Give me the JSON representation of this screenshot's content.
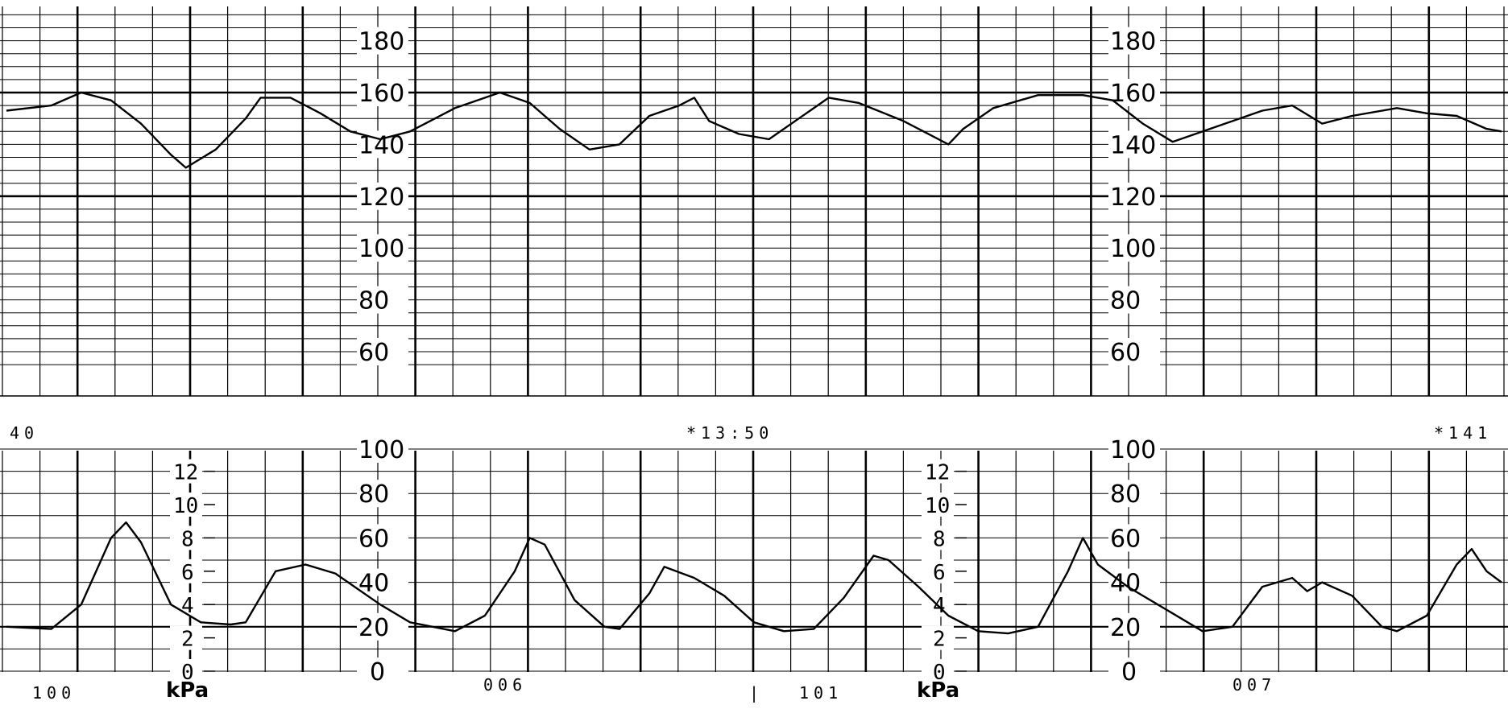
{
  "colors": {
    "paper": "#ffffff",
    "grid": "#000000",
    "trace": "#000000"
  },
  "fhr_scale_labels": [
    "180",
    "160",
    "140",
    "120",
    "100",
    "80",
    "60"
  ],
  "uc_scale_mmhg_labels": [
    "100",
    "80",
    "60",
    "40",
    "20",
    "0"
  ],
  "uc_scale_kpa_labels": [
    "12",
    "10",
    "8",
    "6",
    "4",
    "2",
    "0"
  ],
  "uc_unit_label": "kPa",
  "annotations": {
    "left_fragment": "40",
    "time_mark_1": "*13:50",
    "time_mark_2": "*141",
    "page_1": "100",
    "page_2": "101",
    "counter_1": "006",
    "counter_2": "007",
    "bar_mark": "|"
  },
  "chart_data": [
    {
      "type": "line",
      "title": "",
      "xlabel": "",
      "ylabel": "",
      "ylim": [
        50,
        190
      ],
      "x_range": [
        0,
        100
      ],
      "grid": true,
      "series": [
        {
          "name": "",
          "points": [
            [
              0,
              153
            ],
            [
              3,
              155
            ],
            [
              5,
              160
            ],
            [
              7,
              157
            ],
            [
              9,
              148
            ],
            [
              11,
              136
            ],
            [
              12,
              131
            ],
            [
              14,
              138
            ],
            [
              16,
              150
            ],
            [
              17,
              158
            ],
            [
              19,
              158
            ],
            [
              21,
              152
            ],
            [
              23,
              145
            ],
            [
              25,
              142
            ],
            [
              27,
              145
            ],
            [
              30,
              154
            ],
            [
              33,
              160
            ],
            [
              35,
              156
            ],
            [
              37,
              146
            ],
            [
              39,
              138
            ],
            [
              41,
              140
            ],
            [
              43,
              151
            ],
            [
              45,
              155
            ],
            [
              46,
              158
            ],
            [
              47,
              149
            ],
            [
              49,
              144
            ],
            [
              51,
              142
            ],
            [
              53,
              150
            ],
            [
              55,
              158
            ],
            [
              57,
              156
            ],
            [
              60,
              149
            ],
            [
              62,
              143
            ],
            [
              63,
              140
            ],
            [
              64,
              146
            ],
            [
              66,
              154
            ],
            [
              69,
              159
            ],
            [
              72,
              159
            ],
            [
              74,
              157
            ],
            [
              76,
              148
            ],
            [
              78,
              141
            ],
            [
              81,
              147
            ],
            [
              84,
              153
            ],
            [
              86,
              155
            ],
            [
              88,
              148
            ],
            [
              90,
              151
            ],
            [
              93,
              154
            ],
            [
              95,
              152
            ],
            [
              97,
              151
            ],
            [
              99,
              146
            ],
            [
              100,
              145
            ]
          ]
        }
      ]
    },
    {
      "type": "line",
      "title": "",
      "xlabel": "",
      "ylabel": "",
      "ylim": [
        0,
        100
      ],
      "x_range": [
        0,
        100
      ],
      "grid": true,
      "series": [
        {
          "name": "",
          "points": [
            [
              0,
              20
            ],
            [
              3,
              19
            ],
            [
              5,
              30
            ],
            [
              7,
              60
            ],
            [
              8,
              67
            ],
            [
              9,
              58
            ],
            [
              11,
              30
            ],
            [
              13,
              22
            ],
            [
              15,
              21
            ],
            [
              16,
              22
            ],
            [
              18,
              45
            ],
            [
              20,
              48
            ],
            [
              22,
              44
            ],
            [
              25,
              30
            ],
            [
              27,
              22
            ],
            [
              30,
              18
            ],
            [
              32,
              25
            ],
            [
              34,
              45
            ],
            [
              35,
              60
            ],
            [
              36,
              57
            ],
            [
              38,
              32
            ],
            [
              40,
              20
            ],
            [
              41,
              19
            ],
            [
              43,
              35
            ],
            [
              44,
              47
            ],
            [
              46,
              42
            ],
            [
              48,
              34
            ],
            [
              50,
              22
            ],
            [
              52,
              18
            ],
            [
              54,
              19
            ],
            [
              56,
              33
            ],
            [
              58,
              52
            ],
            [
              59,
              50
            ],
            [
              61,
              38
            ],
            [
              63,
              25
            ],
            [
              65,
              18
            ],
            [
              67,
              17
            ],
            [
              69,
              20
            ],
            [
              71,
              45
            ],
            [
              72,
              60
            ],
            [
              73,
              48
            ],
            [
              75,
              38
            ],
            [
              78,
              26
            ],
            [
              80,
              18
            ],
            [
              82,
              20
            ],
            [
              84,
              38
            ],
            [
              86,
              42
            ],
            [
              87,
              36
            ],
            [
              88,
              40
            ],
            [
              90,
              34
            ],
            [
              92,
              20
            ],
            [
              93,
              18
            ],
            [
              95,
              25
            ],
            [
              97,
              48
            ],
            [
              98,
              55
            ],
            [
              99,
              45
            ],
            [
              100,
              40
            ]
          ]
        }
      ]
    }
  ]
}
